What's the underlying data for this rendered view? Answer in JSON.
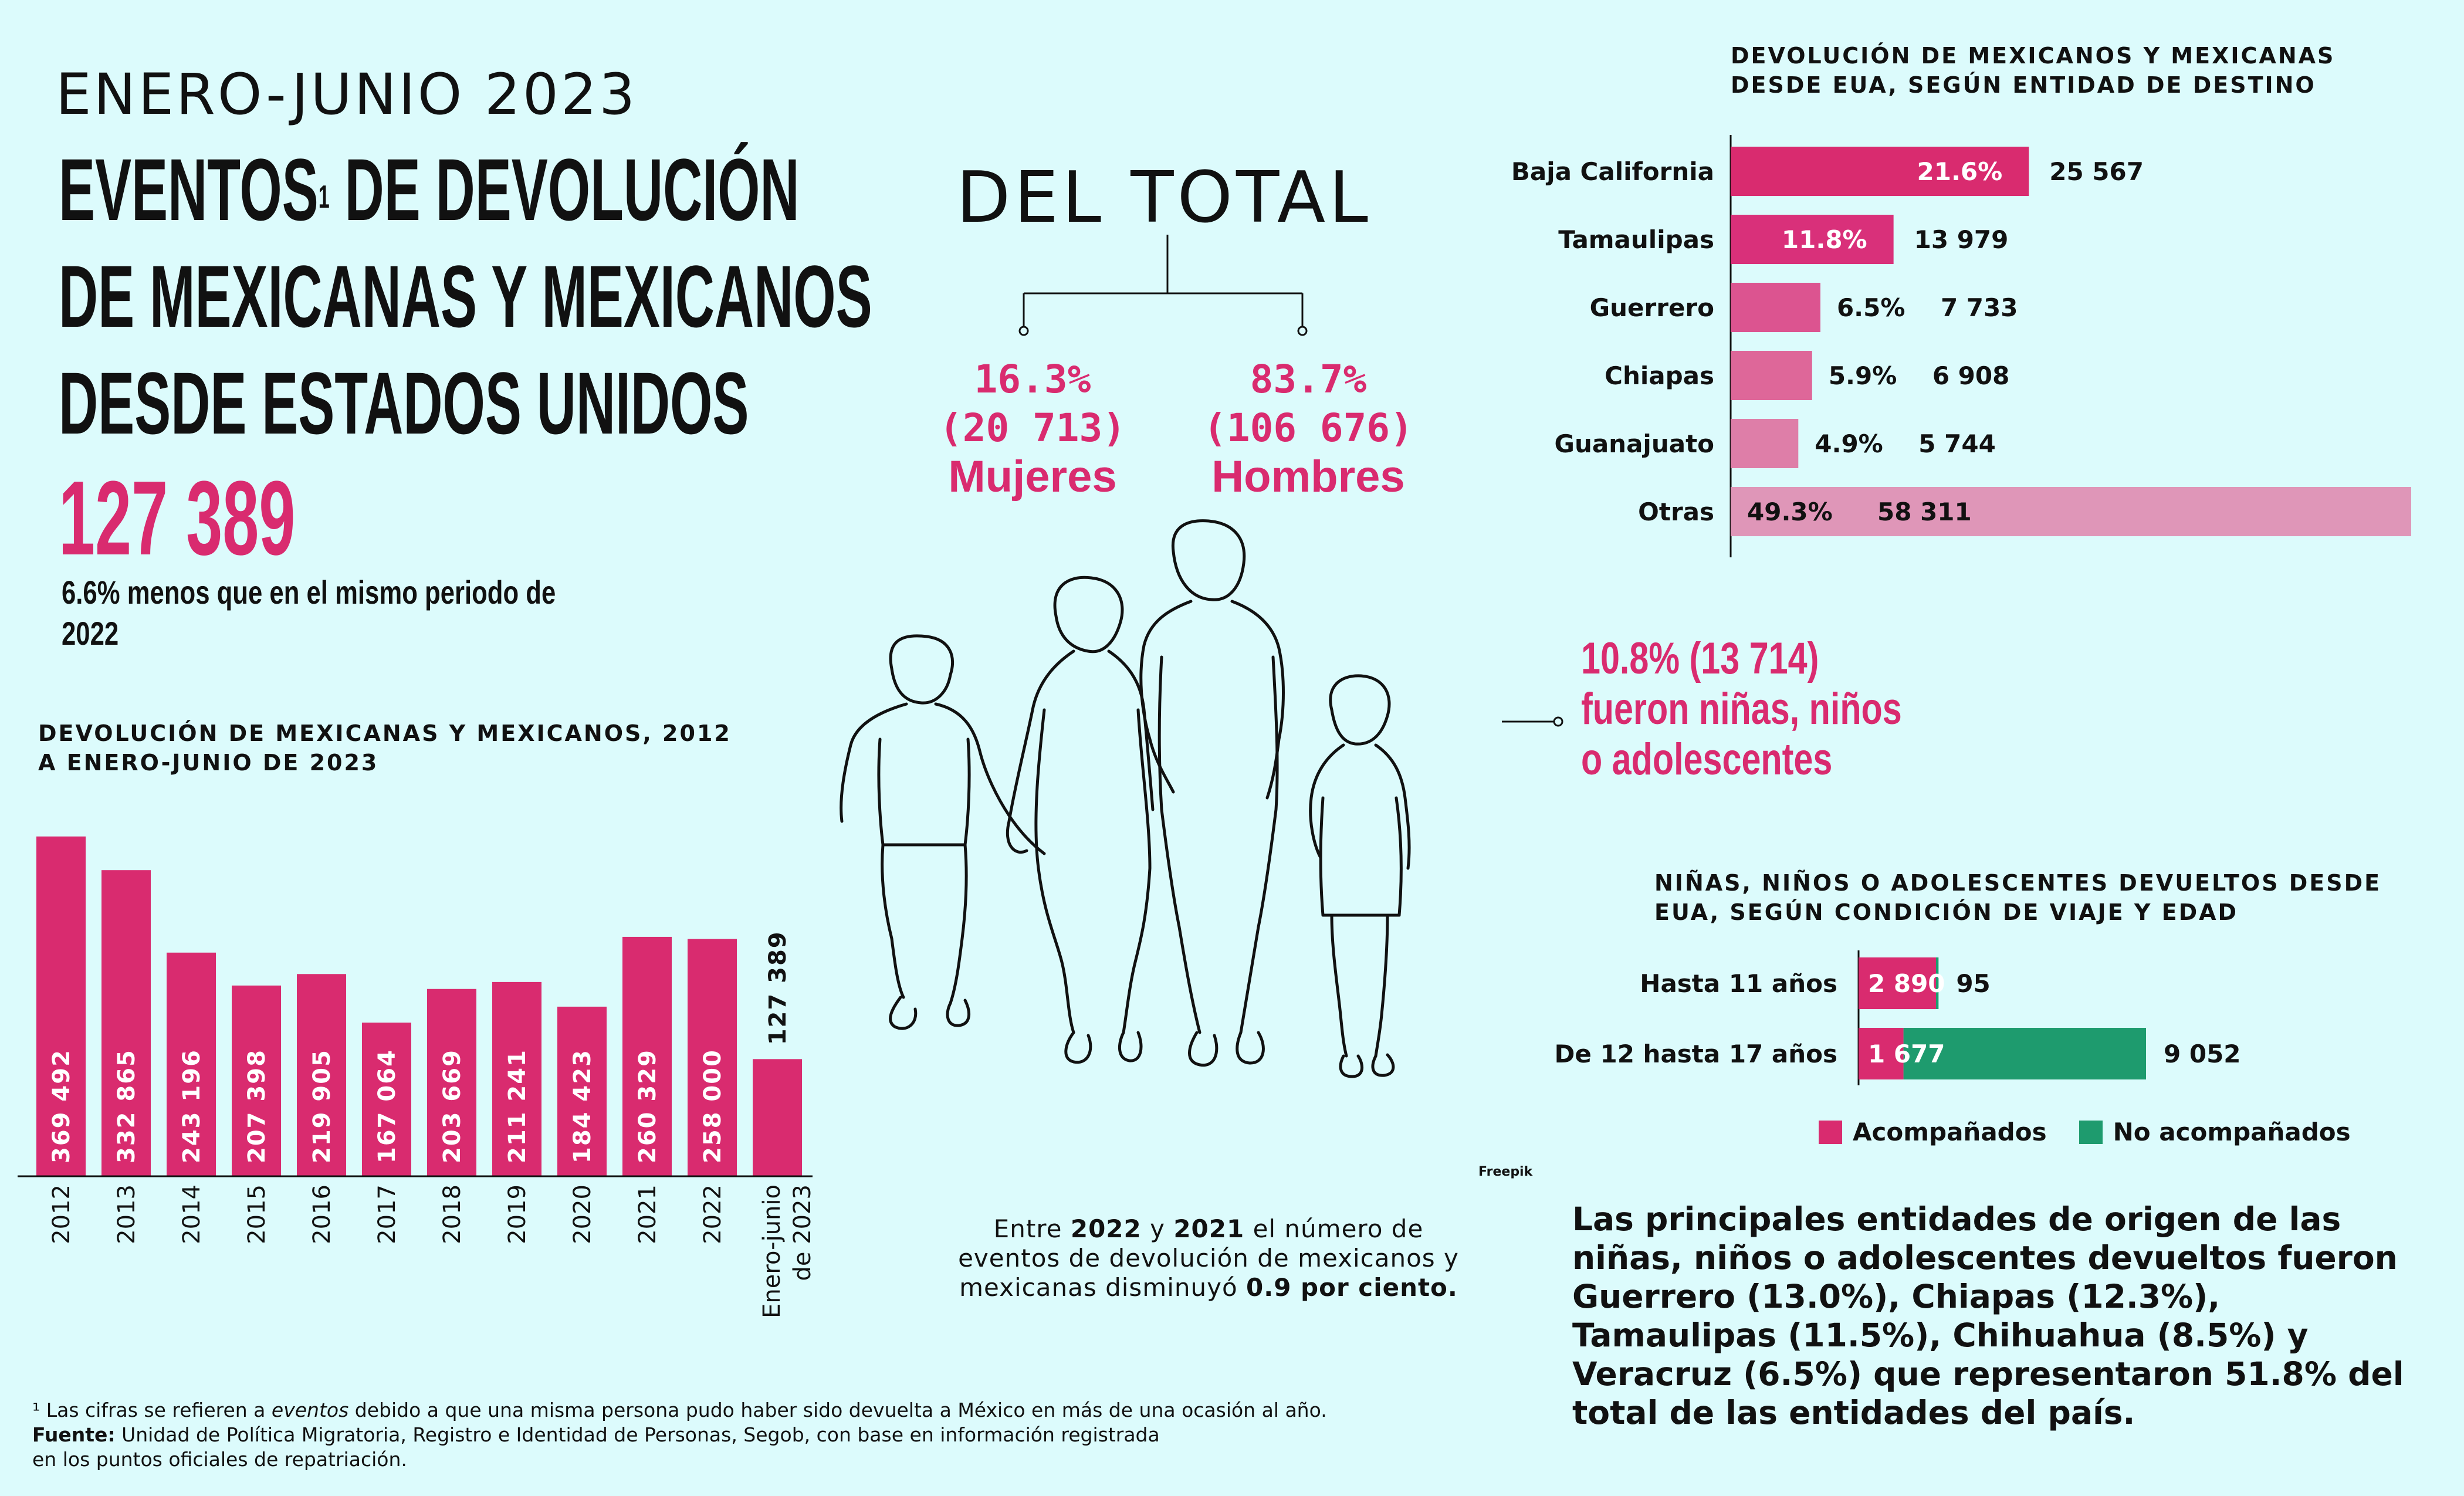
{
  "header": {
    "period": "ENERO-JUNIO 2023",
    "title_line1": "EVENTOS",
    "title_sup": "1",
    "title_line1_rest": " DE DEVOLUCIÓN",
    "title_line2": "DE MEXICANAS Y MEXICANOS",
    "title_line3": "DESDE ESTADOS UNIDOS",
    "total": "127 389",
    "total_note": "6.6% menos que en el mismo periodo de 2022"
  },
  "del_total": {
    "title": "DEL TOTAL",
    "women_pct": "16.3%",
    "women_count": "(20 713)",
    "women_label": "Mujeres",
    "men_pct": "83.7%",
    "men_count": "(106 676)",
    "men_label": "Hombres"
  },
  "kids_note": {
    "line1": "10.8% (13 714)",
    "line2": "fueron niñas, niños",
    "line3": "o adolescentes"
  },
  "credit": "Freepik",
  "center_note": {
    "t1": "Entre ",
    "y1": "2022",
    "t2": " y ",
    "y2": "2021",
    "t3": " el número de eventos de devolución de mexicanos y mexicanas disminuyó ",
    "pct": "0.9 por ciento."
  },
  "bottom_note": {
    "t1": "Las principales entidades de origen de las niñas, niños o adolescentes devueltos fueron ",
    "e1": "Guerrero (13.0%), Chiapas (12.3%), Tamaulipas (11.5%), Chihuahua (8.5%)",
    "t2": " y ",
    "e2": "Veracruz (6.5%)",
    "t3": " que representaron 51.8% del total de las entidades del país."
  },
  "footnote": {
    "line1_a": "¹ Las cifras se refieren a ",
    "line1_em": "eventos",
    "line1_b": " debido a que una misma persona pudo haber sido devuelta a México en más de una ocasión al año.",
    "source_label": "Fuente:",
    "source_text": " Unidad de Política Migratoria, Registro e Identidad de Personas, Segob, con base en información registrada",
    "line3": "en los puntos oficiales de repatriación."
  },
  "colors": {
    "background": "#dcfbfc",
    "accent_pink": "#d92b6f",
    "accompanied": "#d92b6f",
    "unaccompanied": "#1e9b6e"
  },
  "chart_data": [
    {
      "type": "bar",
      "title": "DEVOLUCIÓN DE MEXICANAS Y MEXICANOS, 2012 A ENERO-JUNIO DE 2023",
      "categories": [
        "2012",
        "2013",
        "2014",
        "2015",
        "2016",
        "2017",
        "2018",
        "2019",
        "2020",
        "2021",
        "2022",
        "Enero-junio de 2023"
      ],
      "values": [
        369492,
        332865,
        243196,
        207398,
        219905,
        167064,
        203669,
        211241,
        184423,
        260329,
        258000,
        127389
      ],
      "labels": [
        "369 492",
        "332 865",
        "243 196",
        "207 398",
        "219 905",
        "167 064",
        "203 669",
        "211 241",
        "184 423",
        "260 329",
        "258 000",
        "127 389"
      ],
      "ylim": [
        0,
        370000
      ],
      "color": "#d92b6f"
    },
    {
      "type": "bar",
      "orientation": "horizontal",
      "title": "DEVOLUCIÓN DE MEXICANOS Y MEXICANAS DESDE EUA, SEGÚN ENTIDAD DE DESTINO",
      "categories": [
        "Baja California",
        "Tamaulipas",
        "Guerrero",
        "Chiapas",
        "Guanajuato",
        "Otras"
      ],
      "percentages": [
        "21.6%",
        "11.8%",
        "6.5%",
        "5.9%",
        "4.9%",
        "49.3%"
      ],
      "percent_values": [
        21.6,
        11.8,
        6.5,
        5.9,
        4.9,
        49.3
      ],
      "values": [
        25567,
        13979,
        7733,
        6908,
        5744,
        58311
      ],
      "value_labels": [
        "25 567",
        "13 979",
        "7 733",
        "6 908",
        "5 744",
        "58 311"
      ],
      "colors": [
        "#d92b6f",
        "#d9307a",
        "#dc5490",
        "#de6799",
        "#de7ea8",
        "#df96b8"
      ]
    },
    {
      "type": "bar",
      "orientation": "horizontal",
      "stacked": true,
      "title": "NIÑAS, NIÑOS O ADOLESCENTES DEVUELTOS DESDE EUA, SEGÚN CONDICIÓN DE VIAJE Y EDAD",
      "categories": [
        "Hasta 11 años",
        "De 12 hasta 17 años"
      ],
      "series": [
        {
          "name": "Acompañados",
          "values": [
            2890,
            1677
          ],
          "labels": [
            "2 890",
            "1 677"
          ],
          "color": "#d92b6f"
        },
        {
          "name": "No acompañados",
          "values": [
            95,
            9052
          ],
          "labels": [
            "95",
            "9 052"
          ],
          "color": "#1e9b6e"
        }
      ]
    }
  ]
}
